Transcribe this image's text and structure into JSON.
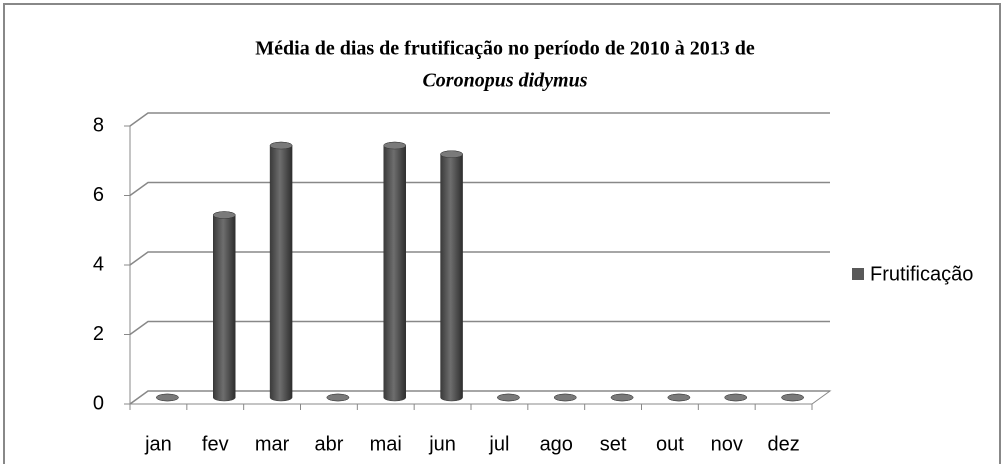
{
  "chart_data": {
    "type": "bar3d",
    "title": "Média de dias de frutificação no período de 2010 à 2013 de",
    "subtitle": "Coronopus didymus",
    "categories": [
      "jan",
      "fev",
      "mar",
      "abr",
      "mai",
      "jun",
      "jul",
      "ago",
      "set",
      "out",
      "nov",
      "dez"
    ],
    "series": [
      {
        "name": "Frutificação",
        "color": "#595959",
        "values": [
          0,
          5.25,
          7.25,
          0,
          7.25,
          7,
          0,
          0,
          0,
          0,
          0,
          0
        ]
      }
    ],
    "ylim": [
      0,
      8
    ],
    "yticks": [
      0,
      2,
      4,
      6,
      8
    ],
    "grid": true,
    "legend": "right"
  }
}
